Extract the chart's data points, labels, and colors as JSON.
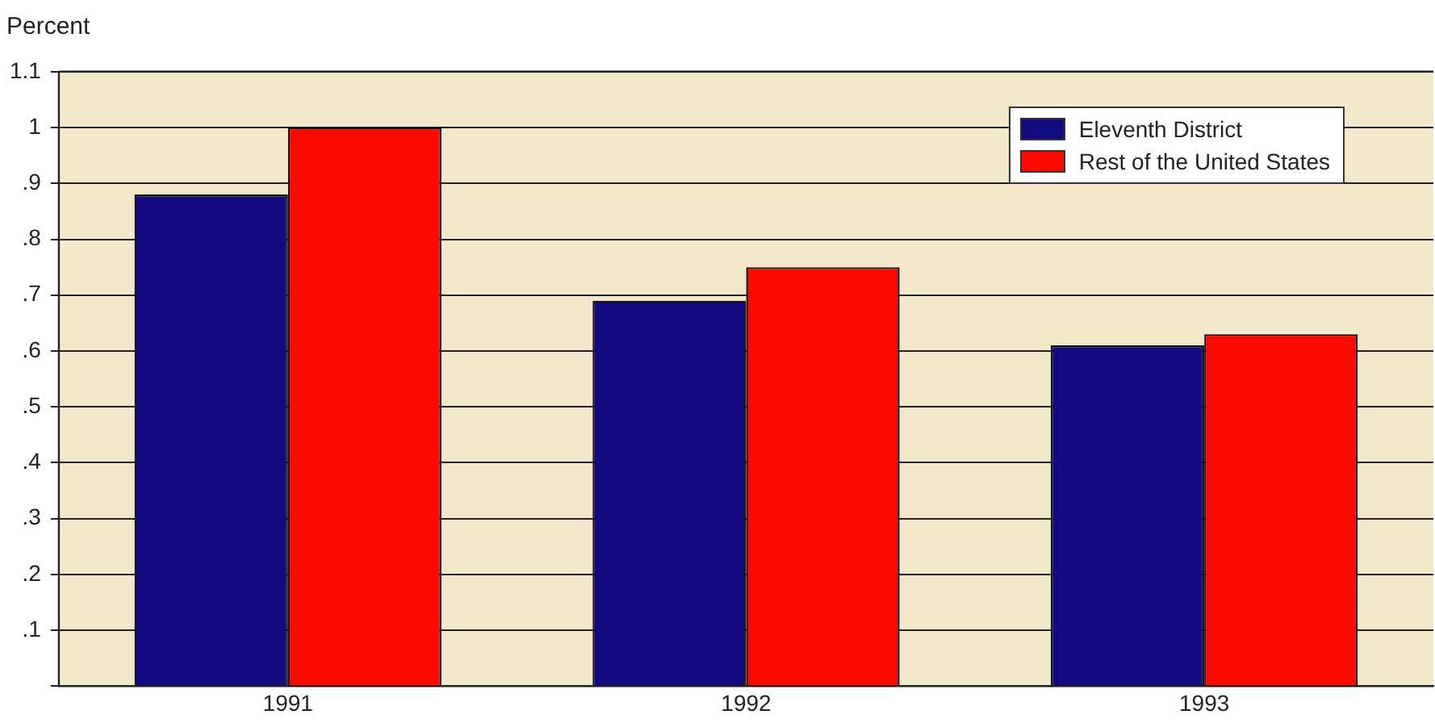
{
  "chart_data": {
    "type": "bar",
    "ylabel": "Percent",
    "categories": [
      "1991",
      "1992",
      "1993"
    ],
    "series": [
      {
        "name": "Eleventh District",
        "color": "#140a80",
        "values": [
          0.88,
          0.69,
          0.61
        ]
      },
      {
        "name": "Rest of the United States",
        "color": "#fc0a00",
        "values": [
          1.0,
          0.75,
          0.63
        ]
      }
    ],
    "ylim": [
      0,
      1.1
    ],
    "yticks": [
      {
        "value": 0,
        "label": null
      },
      {
        "value": 0.1,
        "label": ".1"
      },
      {
        "value": 0.2,
        "label": ".2"
      },
      {
        "value": 0.3,
        "label": ".3"
      },
      {
        "value": 0.4,
        "label": ".4"
      },
      {
        "value": 0.5,
        "label": ".5"
      },
      {
        "value": 0.6,
        "label": ".6"
      },
      {
        "value": 0.7,
        "label": ".7"
      },
      {
        "value": 0.8,
        "label": ".8"
      },
      {
        "value": 0.9,
        "label": ".9"
      },
      1,
      1.1
    ],
    "grid": "y",
    "legend": "top right"
  }
}
